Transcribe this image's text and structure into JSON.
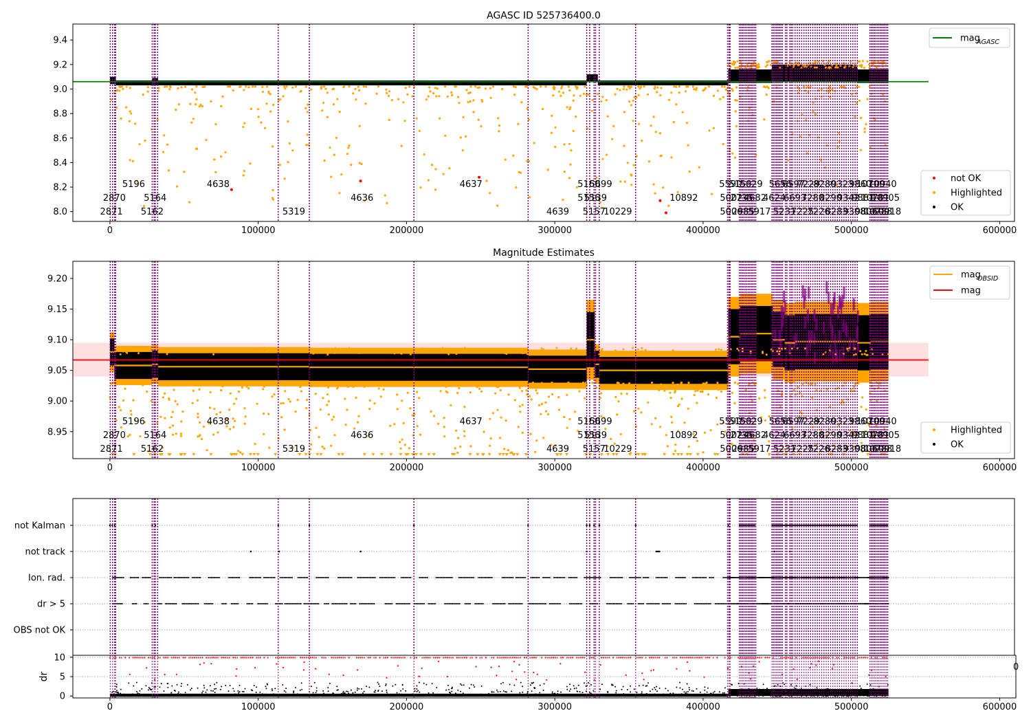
{
  "colors": {
    "ok": "#000000",
    "highlighted": "#ffa500",
    "not_ok": "#ff0000",
    "mag_agasc_line": "#008000",
    "mag_obsid_line": "#ffa500",
    "mag_line": "#ff0000",
    "mag_band": "#ffcccc",
    "obsid_boundary": "#800080",
    "flag_gridline": "#aaaaaa"
  },
  "obsid_boundaries": [
    200,
    1800,
    3200,
    3800,
    28500,
    29800,
    30600,
    32200,
    113500,
    134500,
    205000,
    282000,
    321500,
    323500,
    326500,
    327500,
    330000,
    354500,
    416500,
    417500,
    418200,
    424500,
    425500,
    426500,
    427500,
    428500,
    429500,
    430500,
    431500,
    432500,
    433500,
    434500,
    435500,
    446500,
    447500,
    448500,
    449500,
    450500,
    451500,
    452500,
    453500,
    455500,
    456500,
    458500,
    459500,
    460500,
    462000,
    463500,
    465000,
    466500,
    468000,
    469500,
    471000,
    472500,
    474000,
    475500,
    477000,
    478500,
    480000,
    481500,
    483000,
    484500,
    486000,
    487500,
    489000,
    490500,
    492000,
    493500,
    495000,
    496500,
    498000,
    499500,
    501000,
    502500,
    504000,
    512500,
    513500,
    514500,
    515500,
    516500,
    517500,
    518500,
    519500,
    520500,
    521500,
    522500,
    523500,
    524500
  ],
  "obsid_labels": [
    {
      "text": "2871",
      "x": 1000,
      "row": 3
    },
    {
      "text": "2870",
      "x": 3000,
      "row": 2
    },
    {
      "text": "5196",
      "x": 16000,
      "row": 1
    },
    {
      "text": "5162",
      "x": 28500,
      "row": 3
    },
    {
      "text": "5164",
      "x": 30500,
      "row": 2
    },
    {
      "text": "4638",
      "x": 73000,
      "row": 1
    },
    {
      "text": "5319",
      "x": 124000,
      "row": 3
    },
    {
      "text": "4636",
      "x": 170000,
      "row": 2
    },
    {
      "text": "4637",
      "x": 243500,
      "row": 1
    },
    {
      "text": "4639",
      "x": 302000,
      "row": 3
    },
    {
      "text": "5156",
      "x": 323000,
      "row": 2
    },
    {
      "text": "5157",
      "x": 326500,
      "row": 3
    },
    {
      "text": "5139",
      "x": 327500,
      "row": 2
    },
    {
      "text": "5160",
      "x": 323000,
      "row": 1
    },
    {
      "text": "5699",
      "x": 331000,
      "row": 1
    },
    {
      "text": "10229",
      "x": 342500,
      "row": 3
    },
    {
      "text": "10892",
      "x": 387000,
      "row": 2
    },
    {
      "text": "5590",
      "x": 418500,
      "row": 1
    },
    {
      "text": "5002",
      "x": 419000,
      "row": 2
    },
    {
      "text": "5006",
      "x": 419000,
      "row": 3
    },
    {
      "text": "5150",
      "x": 425000,
      "row": 1
    },
    {
      "text": "2735",
      "x": 426000,
      "row": 2
    },
    {
      "text": "2985",
      "x": 427000,
      "row": 3
    },
    {
      "text": "5629",
      "x": 432500,
      "row": 1
    },
    {
      "text": "4682",
      "x": 435000,
      "row": 2
    },
    {
      "text": "5917",
      "x": 438000,
      "row": 3
    },
    {
      "text": "5656",
      "x": 452000,
      "row": 1
    },
    {
      "text": "4624",
      "x": 448000,
      "row": 2
    },
    {
      "text": "5231",
      "x": 455000,
      "row": 3
    },
    {
      "text": "6597",
      "x": 461000,
      "row": 1
    },
    {
      "text": "6693",
      "x": 462000,
      "row": 2
    },
    {
      "text": "7225",
      "x": 467000,
      "row": 3
    },
    {
      "text": "7229",
      "x": 471000,
      "row": 1
    },
    {
      "text": "7280",
      "x": 474000,
      "row": 2
    },
    {
      "text": "7226",
      "x": 478000,
      "row": 3
    },
    {
      "text": "8280",
      "x": 482000,
      "row": 1
    },
    {
      "text": "8290",
      "x": 486000,
      "row": 2
    },
    {
      "text": "8283",
      "x": 490000,
      "row": 3
    },
    {
      "text": "9323",
      "x": 494000,
      "row": 1
    },
    {
      "text": "9342",
      "x": 498000,
      "row": 2
    },
    {
      "text": "9308",
      "x": 502000,
      "row": 3
    },
    {
      "text": "9860",
      "x": 506000,
      "row": 1
    },
    {
      "text": "9881",
      "x": 508000,
      "row": 2
    },
    {
      "text": "9806",
      "x": 510000,
      "row": 3
    },
    {
      "text": "10700",
      "x": 513000,
      "row": 1
    },
    {
      "text": "10781",
      "x": 516000,
      "row": 2
    },
    {
      "text": "10788",
      "x": 518000,
      "row": 3
    },
    {
      "text": "10940",
      "x": 521000,
      "row": 1
    },
    {
      "text": "10905",
      "x": 523000,
      "row": 2
    },
    {
      "text": "10918",
      "x": 524000,
      "row": 3
    }
  ],
  "chart_data": [
    {
      "type": "scatter",
      "title": "AGASC ID 525736400.0",
      "xlim": [
        -25000,
        610000
      ],
      "ylim": [
        7.92,
        9.53
      ],
      "xticks": [
        0,
        100000,
        200000,
        300000,
        400000,
        500000,
        600000
      ],
      "yticks": [
        8.0,
        8.2,
        8.4,
        8.6,
        8.8,
        9.0,
        9.2,
        9.4
      ],
      "mag_agasc": 9.06,
      "mag_agasc_xrange": [
        -25000,
        552000
      ],
      "legend_line": {
        "label": "mag",
        "subscript": "AGASC"
      },
      "legend_scatter": [
        "not OK",
        "Highlighted",
        "OK"
      ],
      "legend_lines_position": "top-right",
      "legend_scatter_position": "lower-right",
      "not_ok_points": [
        [
          82000,
          8.18
        ],
        [
          169000,
          8.25
        ],
        [
          249000,
          8.28
        ],
        [
          371000,
          8.09
        ],
        [
          375000,
          7.99
        ]
      ],
      "ok_band": [
        {
          "x0": 0,
          "x1": 4000,
          "low": 9.04,
          "high": 9.1
        },
        {
          "x0": 4000,
          "x1": 28500,
          "low": 9.03,
          "high": 9.07
        },
        {
          "x0": 28500,
          "x1": 32500,
          "low": 9.03,
          "high": 9.09
        },
        {
          "x0": 32500,
          "x1": 321500,
          "low": 9.03,
          "high": 9.07
        },
        {
          "x0": 321500,
          "x1": 329000,
          "low": 9.06,
          "high": 9.12
        },
        {
          "x0": 329000,
          "x1": 417000,
          "low": 9.03,
          "high": 9.07
        },
        {
          "x0": 417000,
          "x1": 446500,
          "low": 9.05,
          "high": 9.16
        },
        {
          "x0": 446500,
          "x1": 504000,
          "low": 9.06,
          "high": 9.2
        },
        {
          "x0": 504000,
          "x1": 525000,
          "low": 9.05,
          "high": 9.16
        }
      ]
    },
    {
      "type": "scatter",
      "title": "Magnitude Estimates",
      "xlim": [
        -25000,
        610000
      ],
      "ylim": [
        8.906,
        9.228
      ],
      "xticks": [
        0,
        100000,
        200000,
        300000,
        400000,
        500000,
        600000
      ],
      "yticks": [
        8.95,
        9.0,
        9.05,
        9.1,
        9.15,
        9.2
      ],
      "mag": 9.067,
      "mag_band": [
        9.04,
        9.095
      ],
      "mag_xrange": [
        -25000,
        552000
      ],
      "legend_lines": [
        {
          "label": "mag",
          "subscript": "OBSID"
        },
        {
          "label": "mag",
          "subscript": ""
        }
      ],
      "legend_scatter": [
        "Highlighted",
        "OK"
      ],
      "legend_lines_position": "top-right",
      "legend_scatter_position": "lower-right",
      "mag_obsid_segments": [
        [
          0,
          3000,
          9.08
        ],
        [
          3000,
          28500,
          9.058
        ],
        [
          28500,
          32500,
          9.06
        ],
        [
          32500,
          113500,
          9.056
        ],
        [
          113500,
          134500,
          9.056
        ],
        [
          134500,
          205000,
          9.055
        ],
        [
          205000,
          282000,
          9.055
        ],
        [
          282000,
          321500,
          9.052
        ],
        [
          321500,
          327000,
          9.1
        ],
        [
          327000,
          330000,
          9.06
        ],
        [
          330000,
          354500,
          9.05
        ],
        [
          354500,
          417000,
          9.05
        ],
        [
          417000,
          425000,
          9.105
        ],
        [
          425000,
          436000,
          9.11
        ],
        [
          436000,
          447000,
          9.11
        ],
        [
          447000,
          455000,
          9.1
        ],
        [
          455000,
          462000,
          9.095
        ],
        [
          462000,
          504000,
          9.097
        ],
        [
          504000,
          513000,
          9.095
        ],
        [
          513000,
          525000,
          9.097
        ]
      ]
    },
    {
      "type": "scatter",
      "title": "",
      "xlim": [
        -25000,
        610000
      ],
      "flag_rows": [
        "not Kalman",
        "not track",
        "Ion. rad.",
        "dr > 5",
        "OBS not OK"
      ],
      "dr_ylabel": "dr",
      "dr_ylim": [
        -0.5,
        10.5
      ],
      "dr_yticks": [
        0,
        5,
        10
      ],
      "xticks": [
        0,
        100000,
        200000,
        300000,
        400000,
        500000,
        600000
      ],
      "stray_tick_label": "0"
    }
  ]
}
